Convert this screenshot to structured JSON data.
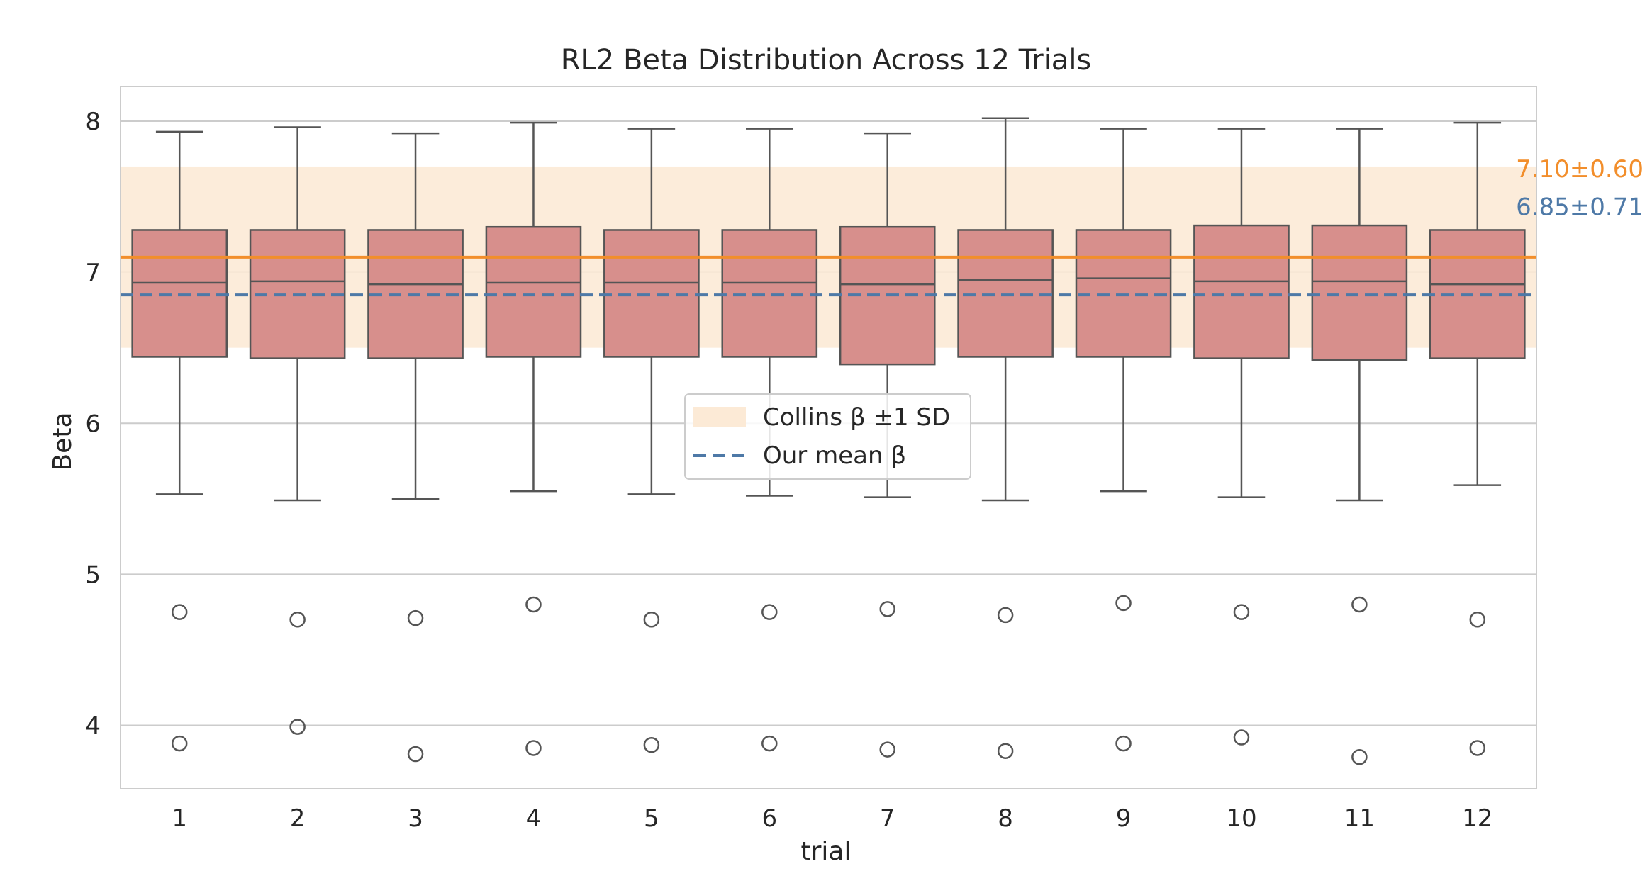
{
  "chart_data": {
    "type": "box",
    "title": "RL2 Beta Distribution Across 12 Trials",
    "xlabel": "trial",
    "ylabel": "Beta",
    "categories": [
      "1",
      "2",
      "3",
      "4",
      "5",
      "6",
      "7",
      "8",
      "9",
      "10",
      "11",
      "12"
    ],
    "ylim": [
      3.58,
      8.23
    ],
    "yticks": [
      4,
      5,
      6,
      7,
      8
    ],
    "grid": true,
    "boxes": [
      {
        "whislo": 5.53,
        "q1": 6.44,
        "med": 6.93,
        "q3": 7.28,
        "whishi": 7.93,
        "fliers": [
          4.75,
          3.88
        ]
      },
      {
        "whislo": 5.49,
        "q1": 6.43,
        "med": 6.94,
        "q3": 7.28,
        "whishi": 7.96,
        "fliers": [
          4.7,
          3.99
        ]
      },
      {
        "whislo": 5.5,
        "q1": 6.43,
        "med": 6.92,
        "q3": 7.28,
        "whishi": 7.92,
        "fliers": [
          4.71,
          3.81
        ]
      },
      {
        "whislo": 5.55,
        "q1": 6.44,
        "med": 6.93,
        "q3": 7.3,
        "whishi": 7.99,
        "fliers": [
          4.8,
          3.85
        ]
      },
      {
        "whislo": 5.53,
        "q1": 6.44,
        "med": 6.93,
        "q3": 7.28,
        "whishi": 7.95,
        "fliers": [
          4.7,
          3.87
        ]
      },
      {
        "whislo": 5.52,
        "q1": 6.44,
        "med": 6.93,
        "q3": 7.28,
        "whishi": 7.95,
        "fliers": [
          4.75,
          3.88
        ]
      },
      {
        "whislo": 5.51,
        "q1": 6.39,
        "med": 6.92,
        "q3": 7.3,
        "whishi": 7.92,
        "fliers": [
          4.77,
          3.84
        ]
      },
      {
        "whislo": 5.49,
        "q1": 6.44,
        "med": 6.95,
        "q3": 7.28,
        "whishi": 8.02,
        "fliers": [
          4.73,
          3.83
        ]
      },
      {
        "whislo": 5.55,
        "q1": 6.44,
        "med": 6.96,
        "q3": 7.28,
        "whishi": 7.95,
        "fliers": [
          4.81,
          3.88
        ]
      },
      {
        "whislo": 5.51,
        "q1": 6.43,
        "med": 6.94,
        "q3": 7.31,
        "whishi": 7.95,
        "fliers": [
          4.75,
          3.92
        ]
      },
      {
        "whislo": 5.49,
        "q1": 6.42,
        "med": 6.94,
        "q3": 7.31,
        "whishi": 7.95,
        "fliers": [
          4.8,
          3.79
        ]
      },
      {
        "whislo": 5.59,
        "q1": 6.43,
        "med": 6.92,
        "q3": 7.28,
        "whishi": 7.99,
        "fliers": [
          4.7,
          3.85
        ]
      }
    ],
    "reference": {
      "collins_mean": 7.1,
      "collins_sd": 0.6,
      "our_mean": 6.85,
      "collins_annotation": "7.10±0.60",
      "our_annotation": "6.85±0.71"
    },
    "legend": {
      "placement": "center",
      "entries": [
        {
          "label": "Collins β ±1 SD",
          "kind": "band"
        },
        {
          "label": "Our mean β",
          "kind": "dashed-line"
        }
      ]
    },
    "colors": {
      "box_fill": "#d78f8c",
      "box_edge": "#555555",
      "collins": "#f28e2b",
      "collins_band": "#fcead6",
      "ours": "#4e79a7",
      "grid": "#cccccc",
      "text": "#262626"
    }
  }
}
